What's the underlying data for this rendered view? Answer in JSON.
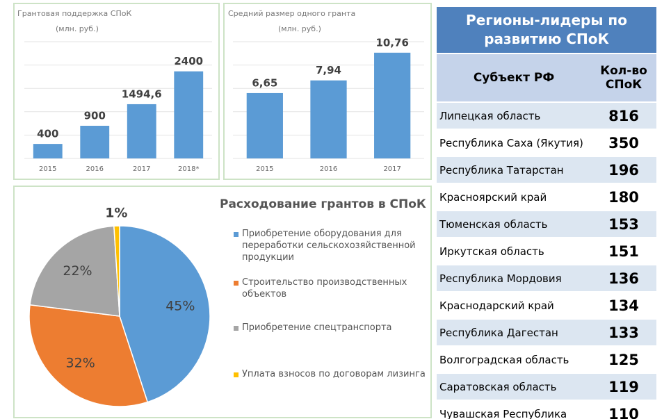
{
  "chart_data": [
    {
      "type": "bar",
      "title": "Грантовая поддержка СПоК",
      "subtitle": "(млн. руб.)",
      "categories": [
        "2015",
        "2016",
        "2017",
        "2018*"
      ],
      "values": [
        400,
        900,
        1494.6,
        2400
      ],
      "value_labels": [
        "400",
        "900",
        "1494,6",
        "2400"
      ],
      "color": "#5b9bd5",
      "ylim": [
        0,
        3600
      ],
      "grid": true
    },
    {
      "type": "bar",
      "title": "Средний размер одного гранта",
      "subtitle": "(млн. руб.)",
      "categories": [
        "2015",
        "2016",
        "2017"
      ],
      "values": [
        6.65,
        7.94,
        10.76
      ],
      "value_labels": [
        "6,65",
        "7,94",
        "10,76"
      ],
      "color": "#5b9bd5",
      "ylim": [
        0,
        14
      ],
      "grid": true
    },
    {
      "type": "pie",
      "title": "Расходование грантов в СПоК",
      "categories": [
        "Приобретение оборудования для переработки сельскохозяйственной продукции",
        "Строительство производственных объектов",
        "Приобретение спецтранспорта",
        "Уплата взносов по договорам лизинга"
      ],
      "values": [
        45,
        32,
        22,
        1
      ],
      "value_labels": [
        "45%",
        "32%",
        "22%",
        "1%"
      ],
      "colors": [
        "#5b9bd5",
        "#ed7d31",
        "#a5a5a5",
        "#ffc000"
      ]
    }
  ],
  "table": {
    "title": "Регионы-лидеры по развитию СПоК",
    "header": [
      "Субъект РФ",
      "Кол-во СПоК"
    ],
    "rows": [
      [
        "Липецкая область",
        "816"
      ],
      [
        "Республика Саха (Якутия)",
        "350"
      ],
      [
        "Республика Татарстан",
        "196"
      ],
      [
        "Красноярский край",
        "180"
      ],
      [
        "Тюменская область",
        "153"
      ],
      [
        "Иркутская область",
        "151"
      ],
      [
        "Республика Мордовия",
        "136"
      ],
      [
        "Краснодарский край",
        "134"
      ],
      [
        "Республика Дагестан",
        "133"
      ],
      [
        "Волгоградская область",
        "125"
      ],
      [
        "Саратовская область",
        "119"
      ],
      [
        "Чувашская Республика",
        "110"
      ]
    ]
  }
}
